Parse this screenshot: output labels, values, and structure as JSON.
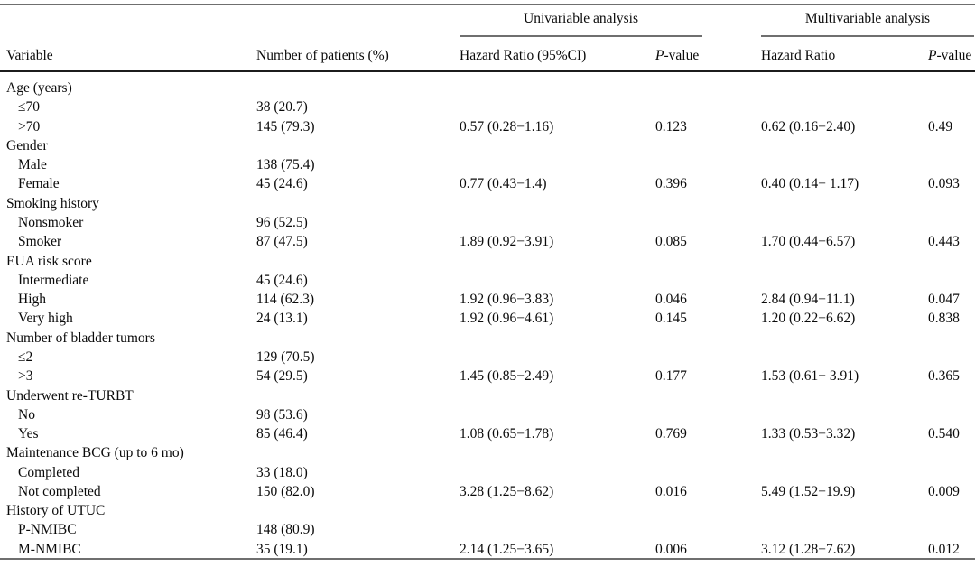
{
  "colors": {
    "rule_gray": "#6f6f6f",
    "rule_dark": "#1c1c1c",
    "text": "#0a0a0a",
    "background": "#ffffff"
  },
  "table": {
    "header": {
      "variable": "Variable",
      "patients": "Number of patients (%)",
      "uni_group": "Univariable analysis",
      "multi_group": "Multivariable analysis",
      "uni_hr": "Hazard Ratio (95%CI)",
      "multi_hr": "Hazard Ratio",
      "pvalue_italic": "P",
      "pvalue_rest": "-value"
    },
    "rows": [
      {
        "variable": "Age (years)",
        "indent": false,
        "n": "",
        "uni_hr": "",
        "uni_p": "",
        "multi_hr": "",
        "multi_p": ""
      },
      {
        "variable": "≤70",
        "indent": true,
        "n": "38 (20.7)",
        "uni_hr": "",
        "uni_p": "",
        "multi_hr": "",
        "multi_p": ""
      },
      {
        "variable": ">70",
        "indent": true,
        "n": "145 (79.3)",
        "uni_hr": "0.57 (0.28−1.16)",
        "uni_p": "0.123",
        "multi_hr": "0.62 (0.16−2.40)",
        "multi_p": "0.49"
      },
      {
        "variable": "Gender",
        "indent": false,
        "n": "",
        "uni_hr": "",
        "uni_p": "",
        "multi_hr": "",
        "multi_p": ""
      },
      {
        "variable": "Male",
        "indent": true,
        "n": "138 (75.4)",
        "uni_hr": "",
        "uni_p": "",
        "multi_hr": "",
        "multi_p": ""
      },
      {
        "variable": "Female",
        "indent": true,
        "n": "45 (24.6)",
        "uni_hr": "0.77 (0.43−1.4)",
        "uni_p": "0.396",
        "multi_hr": "0.40 (0.14− 1.17)",
        "multi_p": "0.093"
      },
      {
        "variable": "Smoking history",
        "indent": false,
        "n": "",
        "uni_hr": "",
        "uni_p": "",
        "multi_hr": "",
        "multi_p": ""
      },
      {
        "variable": "Nonsmoker",
        "indent": true,
        "n": "96 (52.5)",
        "uni_hr": "",
        "uni_p": "",
        "multi_hr": "",
        "multi_p": ""
      },
      {
        "variable": "Smoker",
        "indent": true,
        "n": "87 (47.5)",
        "uni_hr": "1.89 (0.92−3.91)",
        "uni_p": "0.085",
        "multi_hr": "1.70 (0.44−6.57)",
        "multi_p": "0.443"
      },
      {
        "variable": "EUA risk score",
        "indent": false,
        "n": "",
        "uni_hr": "",
        "uni_p": "",
        "multi_hr": "",
        "multi_p": ""
      },
      {
        "variable": "Intermediate",
        "indent": true,
        "n": "45 (24.6)",
        "uni_hr": "",
        "uni_p": "",
        "multi_hr": "",
        "multi_p": ""
      },
      {
        "variable": "High",
        "indent": true,
        "n": "114 (62.3)",
        "uni_hr": "1.92 (0.96−3.83)",
        "uni_p": "0.046",
        "multi_hr": "2.84 (0.94−11.1)",
        "multi_p": "0.047"
      },
      {
        "variable": "Very high",
        "indent": true,
        "n": "24 (13.1)",
        "uni_hr": "1.92 (0.96−4.61)",
        "uni_p": "0.145",
        "multi_hr": "1.20 (0.22−6.62)",
        "multi_p": "0.838"
      },
      {
        "variable": "Number of bladder tumors",
        "indent": false,
        "n": "",
        "uni_hr": "",
        "uni_p": "",
        "multi_hr": "",
        "multi_p": ""
      },
      {
        "variable": "≤2",
        "indent": true,
        "n": "129 (70.5)",
        "uni_hr": "",
        "uni_p": "",
        "multi_hr": "",
        "multi_p": ""
      },
      {
        "variable": ">3",
        "indent": true,
        "n": "54 (29.5)",
        "uni_hr": "1.45 (0.85−2.49)",
        "uni_p": "0.177",
        "multi_hr": "1.53 (0.61− 3.91)",
        "multi_p": "0.365"
      },
      {
        "variable": "Underwent re-TURBT",
        "indent": false,
        "n": "",
        "uni_hr": "",
        "uni_p": "",
        "multi_hr": "",
        "multi_p": ""
      },
      {
        "variable": "No",
        "indent": true,
        "n": "98 (53.6)",
        "uni_hr": "",
        "uni_p": "",
        "multi_hr": "",
        "multi_p": ""
      },
      {
        "variable": "Yes",
        "indent": true,
        "n": "85 (46.4)",
        "uni_hr": "1.08 (0.65−1.78)",
        "uni_p": "0.769",
        "multi_hr": "1.33 (0.53−3.32)",
        "multi_p": "0.540"
      },
      {
        "variable": "Maintenance BCG (up to 6 mo)",
        "indent": false,
        "n": "",
        "uni_hr": "",
        "uni_p": "",
        "multi_hr": "",
        "multi_p": ""
      },
      {
        "variable": "Completed",
        "indent": true,
        "n": "33 (18.0)",
        "uni_hr": "",
        "uni_p": "",
        "multi_hr": "",
        "multi_p": ""
      },
      {
        "variable": "Not completed",
        "indent": true,
        "n": "150 (82.0)",
        "uni_hr": "3.28 (1.25−8.62)",
        "uni_p": "0.016",
        "multi_hr": "5.49 (1.52−19.9)",
        "multi_p": "0.009"
      },
      {
        "variable": "History of UTUC",
        "indent": false,
        "n": "",
        "uni_hr": "",
        "uni_p": "",
        "multi_hr": "",
        "multi_p": ""
      },
      {
        "variable": "P-NMIBC",
        "indent": true,
        "n": "148 (80.9)",
        "uni_hr": "",
        "uni_p": "",
        "multi_hr": "",
        "multi_p": ""
      },
      {
        "variable": "M-NMIBC",
        "indent": true,
        "n": "35 (19.1)",
        "uni_hr": "2.14 (1.25−3.65)",
        "uni_p": "0.006",
        "multi_hr": "3.12 (1.28−7.62)",
        "multi_p": "0.012"
      }
    ]
  }
}
